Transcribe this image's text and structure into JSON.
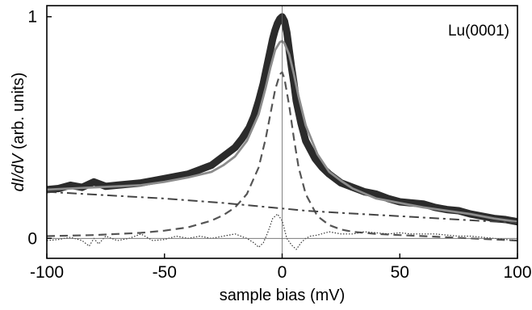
{
  "chart_data": {
    "type": "line",
    "annotation": "Lu(0001)",
    "xlabel": "sample bias (mV)",
    "ylabel": {
      "parts": [
        {
          "text": "dI/dV",
          "italic": true
        },
        {
          "text": " (arb. units)",
          "italic": false
        }
      ]
    },
    "xlim": [
      -100,
      100
    ],
    "ylim": [
      -0.09,
      1.05
    ],
    "xticks": [
      -100,
      -50,
      0,
      50,
      100
    ],
    "xtick_labels": [
      "-100",
      "-50",
      "0",
      "50",
      "100"
    ],
    "yticks": [
      0,
      1
    ],
    "ytick_labels": [
      "0",
      "1"
    ],
    "grid": false,
    "legend": "none",
    "reference_lines": {
      "vertical_x": 0,
      "horizontal_y": 0
    },
    "series": [
      {
        "style": "thick-black-points",
        "color": "#2b2b2b",
        "x": [
          -100,
          -95,
          -90,
          -85,
          -80,
          -75,
          -70,
          -65,
          -60,
          -55,
          -50,
          -45,
          -40,
          -35,
          -30,
          -25,
          -20,
          -17,
          -14,
          -12,
          -10,
          -8,
          -6,
          -5,
          -4,
          -3,
          -2,
          -1,
          0,
          1,
          2,
          3,
          4,
          5,
          6,
          8,
          10,
          12,
          14,
          17,
          20,
          25,
          30,
          35,
          40,
          45,
          50,
          55,
          60,
          65,
          70,
          75,
          80,
          85,
          90,
          95,
          100
        ],
        "y": [
          0.22,
          0.225,
          0.24,
          0.23,
          0.255,
          0.235,
          0.24,
          0.245,
          0.25,
          0.26,
          0.27,
          0.28,
          0.29,
          0.31,
          0.33,
          0.37,
          0.41,
          0.45,
          0.5,
          0.55,
          0.62,
          0.7,
          0.8,
          0.85,
          0.9,
          0.94,
          0.97,
          0.99,
          1.0,
          0.98,
          0.93,
          0.85,
          0.77,
          0.7,
          0.62,
          0.52,
          0.44,
          0.4,
          0.36,
          0.32,
          0.29,
          0.25,
          0.23,
          0.21,
          0.2,
          0.18,
          0.165,
          0.16,
          0.155,
          0.14,
          0.13,
          0.125,
          0.11,
          0.1,
          0.09,
          0.085,
          0.075
        ]
      },
      {
        "style": "fit-solid",
        "color": "#8c8c8c",
        "x": [
          -100,
          -90,
          -80,
          -70,
          -60,
          -50,
          -40,
          -30,
          -25,
          -20,
          -15,
          -10,
          -7,
          -5,
          -3,
          -1,
          0,
          1,
          3,
          5,
          7,
          10,
          15,
          20,
          25,
          30,
          40,
          50,
          60,
          70,
          80,
          90,
          100
        ],
        "y": [
          0.22,
          0.225,
          0.23,
          0.235,
          0.24,
          0.255,
          0.275,
          0.3,
          0.33,
          0.37,
          0.44,
          0.56,
          0.68,
          0.77,
          0.85,
          0.885,
          0.89,
          0.88,
          0.83,
          0.74,
          0.64,
          0.51,
          0.38,
          0.3,
          0.26,
          0.225,
          0.18,
          0.16,
          0.14,
          0.125,
          0.11,
          0.09,
          0.075
        ]
      },
      {
        "style": "dashed",
        "color": "#555555",
        "x": [
          -100,
          -80,
          -60,
          -50,
          -40,
          -30,
          -25,
          -20,
          -15,
          -10,
          -7,
          -5,
          -3,
          -1,
          0,
          1,
          3,
          5,
          7,
          10,
          15,
          20,
          25,
          30,
          40,
          50,
          60,
          80,
          100
        ],
        "y": [
          0.01,
          0.015,
          0.025,
          0.035,
          0.05,
          0.08,
          0.105,
          0.14,
          0.2,
          0.32,
          0.45,
          0.56,
          0.67,
          0.74,
          0.75,
          0.72,
          0.6,
          0.45,
          0.32,
          0.2,
          0.1,
          0.06,
          0.04,
          0.03,
          0.02,
          0.015,
          0.01,
          0.0,
          -0.01
        ]
      },
      {
        "style": "dash-dot",
        "color": "#444444",
        "x": [
          -100,
          -75,
          -50,
          -25,
          -10,
          -5,
          0,
          5,
          10,
          25,
          50,
          75,
          100
        ],
        "y": [
          0.21,
          0.195,
          0.18,
          0.16,
          0.145,
          0.14,
          0.135,
          0.13,
          0.125,
          0.115,
          0.1,
          0.085,
          0.07
        ]
      },
      {
        "style": "dotted-residual",
        "color": "#333333",
        "x": [
          -100,
          -95,
          -90,
          -85,
          -82,
          -80,
          -78,
          -75,
          -70,
          -65,
          -60,
          -55,
          -50,
          -45,
          -40,
          -35,
          -30,
          -25,
          -20,
          -15,
          -12,
          -10,
          -8,
          -6,
          -4,
          -2,
          0,
          2,
          4,
          6,
          8,
          10,
          12,
          15,
          20,
          25,
          30,
          35,
          40,
          45,
          50,
          55,
          60,
          65,
          70,
          75,
          80,
          85,
          90,
          95,
          100
        ],
        "y": [
          -0.01,
          -0.005,
          0.005,
          -0.01,
          -0.035,
          0.0,
          -0.025,
          0.01,
          -0.01,
          0.0,
          0.02,
          -0.01,
          -0.005,
          0.01,
          0.0,
          0.01,
          0.0,
          0.01,
          0.02,
          0.0,
          -0.02,
          -0.04,
          -0.02,
          0.03,
          0.09,
          0.11,
          0.08,
          0.0,
          -0.03,
          -0.05,
          -0.02,
          0.0,
          0.01,
          0.015,
          0.03,
          0.02,
          0.02,
          0.03,
          0.025,
          0.02,
          0.025,
          0.02,
          0.02,
          0.02,
          0.015,
          0.01,
          0.01,
          0.005,
          0.0,
          -0.005,
          -0.01
        ]
      }
    ]
  }
}
